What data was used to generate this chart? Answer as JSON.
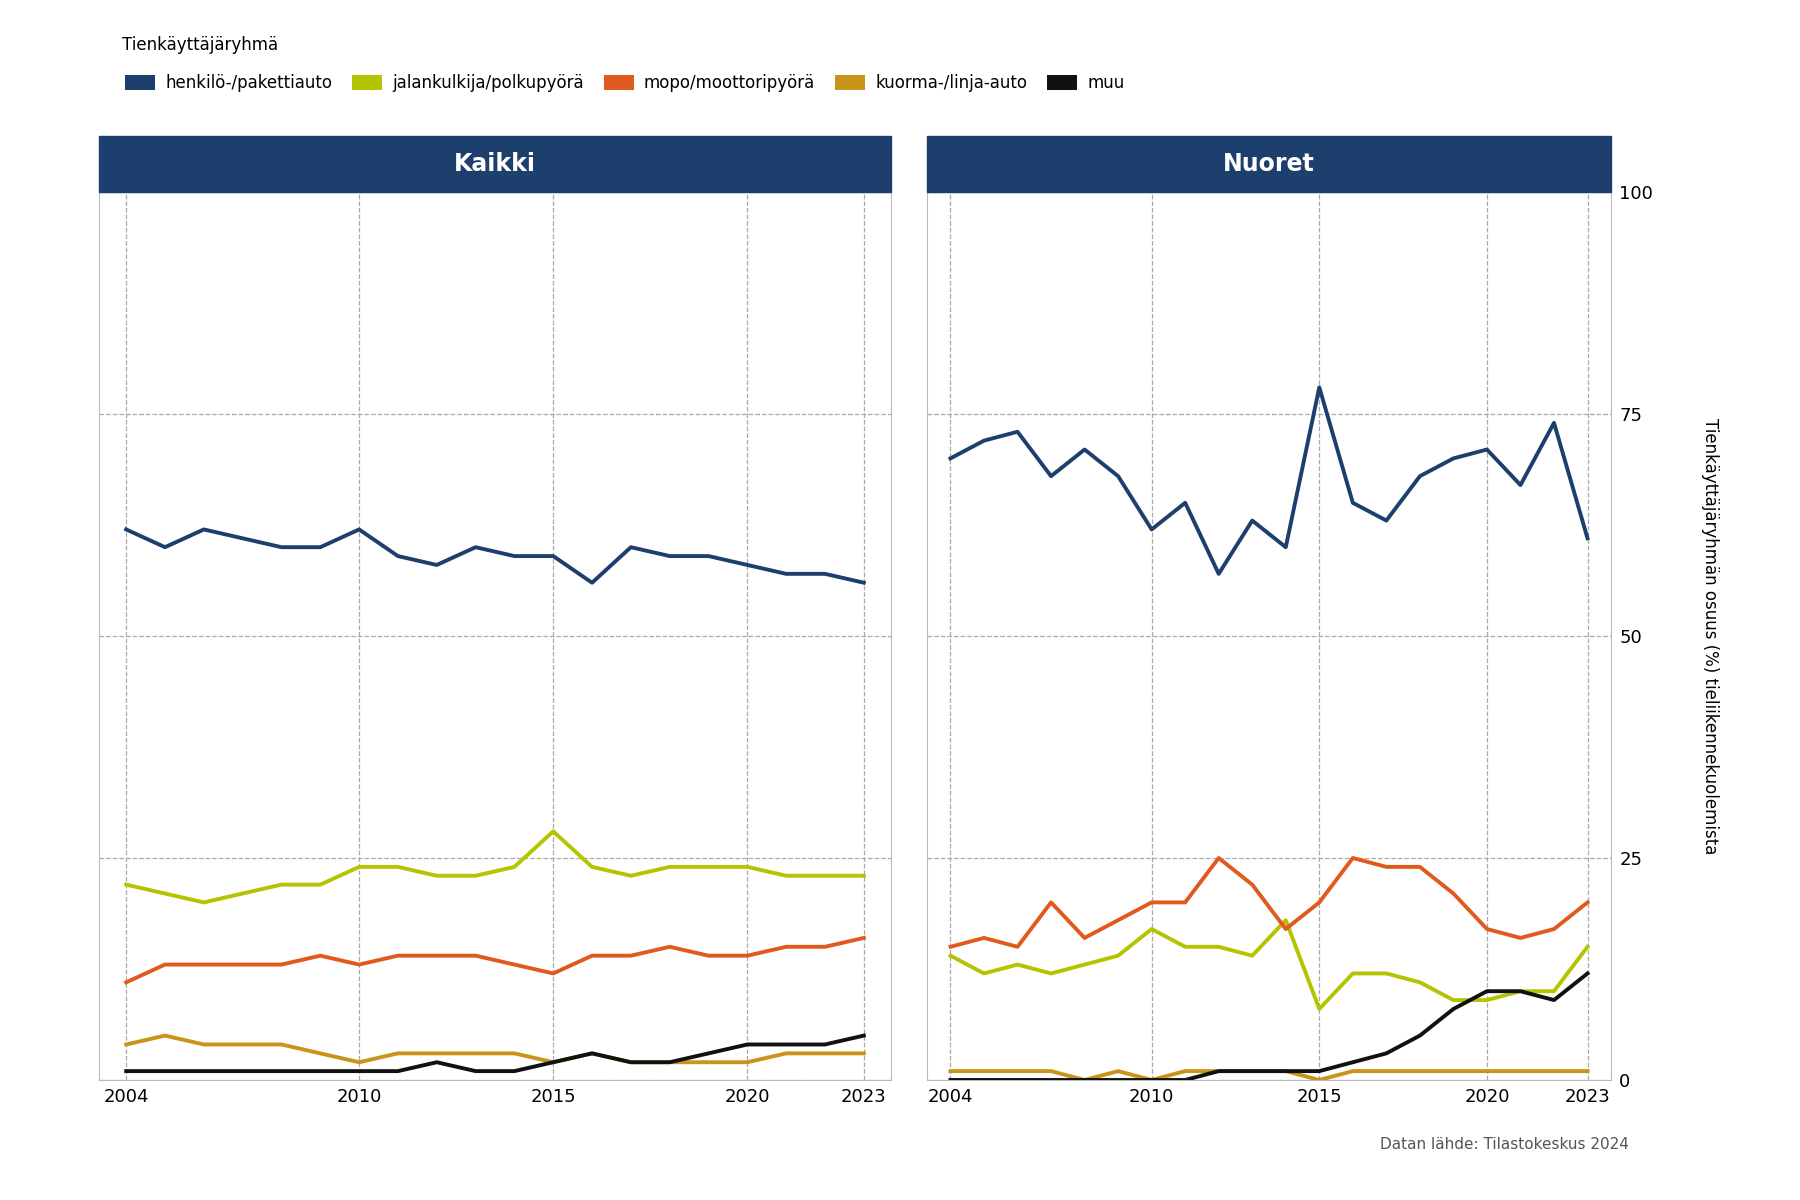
{
  "years": [
    2004,
    2005,
    2006,
    2007,
    2008,
    2009,
    2010,
    2011,
    2012,
    2013,
    2014,
    2015,
    2016,
    2017,
    2018,
    2019,
    2020,
    2021,
    2022,
    2023
  ],
  "kaikki": {
    "henkilo": [
      62,
      60,
      62,
      61,
      60,
      60,
      62,
      59,
      58,
      60,
      59,
      59,
      56,
      60,
      59,
      59,
      58,
      57,
      57,
      56
    ],
    "jalankulkija": [
      22,
      21,
      20,
      21,
      22,
      22,
      24,
      24,
      23,
      23,
      24,
      28,
      24,
      23,
      24,
      24,
      24,
      23,
      23,
      23
    ],
    "mopo": [
      11,
      13,
      13,
      13,
      13,
      14,
      13,
      14,
      14,
      14,
      13,
      12,
      14,
      14,
      15,
      14,
      14,
      15,
      15,
      16
    ],
    "kuorma": [
      4,
      5,
      4,
      4,
      4,
      3,
      2,
      3,
      3,
      3,
      3,
      2,
      3,
      2,
      2,
      2,
      2,
      3,
      3,
      3
    ],
    "muu": [
      1,
      1,
      1,
      1,
      1,
      1,
      1,
      1,
      2,
      1,
      1,
      2,
      3,
      2,
      2,
      3,
      4,
      4,
      4,
      5
    ]
  },
  "nuoret": {
    "henkilo": [
      70,
      72,
      73,
      68,
      71,
      68,
      62,
      65,
      57,
      63,
      60,
      78,
      65,
      63,
      68,
      70,
      71,
      67,
      74,
      61
    ],
    "jalankulkija": [
      14,
      12,
      13,
      12,
      13,
      14,
      17,
      15,
      15,
      14,
      18,
      8,
      12,
      12,
      11,
      9,
      9,
      10,
      10,
      15
    ],
    "mopo": [
      15,
      16,
      15,
      20,
      16,
      18,
      20,
      20,
      25,
      22,
      17,
      20,
      25,
      24,
      24,
      21,
      17,
      16,
      17,
      20
    ],
    "kuorma": [
      1,
      1,
      1,
      1,
      0,
      1,
      0,
      1,
      1,
      1,
      1,
      0,
      1,
      1,
      1,
      1,
      1,
      1,
      1,
      1
    ],
    "muu": [
      0,
      0,
      0,
      0,
      0,
      0,
      0,
      0,
      1,
      1,
      1,
      1,
      2,
      3,
      5,
      8,
      10,
      10,
      9,
      12
    ]
  },
  "colors": {
    "henkilo": "#1c3f6e",
    "jalankulkija": "#b5c400",
    "mopo": "#e05a1e",
    "kuorma": "#c8951a",
    "muu": "#111111"
  },
  "header_bg": "#1c3f6e",
  "header_text": "#ffffff",
  "background": "#ffffff",
  "grid_color": "#aaaaaa",
  "title_kaikki": "Kaikki",
  "title_nuoret": "Nuoret",
  "ylabel": "Tienkäyttäjäryhmän osuus (%) tieliikennekuolemista",
  "legend_title": "Tienkäyttäjäryhmä",
  "legend_labels": [
    "henkilö-/pakettiauto",
    "jalankulkija/polkupyörä",
    "mopo/moottoripyörä",
    "kuorma-/linja-auto",
    "muu"
  ],
  "source_text": "Datan lähde: Tilastokeskus 2024",
  "ylim": [
    0,
    100
  ],
  "yticks": [
    0,
    25,
    50,
    75,
    100
  ],
  "xticks": [
    2004,
    2010,
    2015,
    2020,
    2023
  ],
  "line_width": 2.8
}
